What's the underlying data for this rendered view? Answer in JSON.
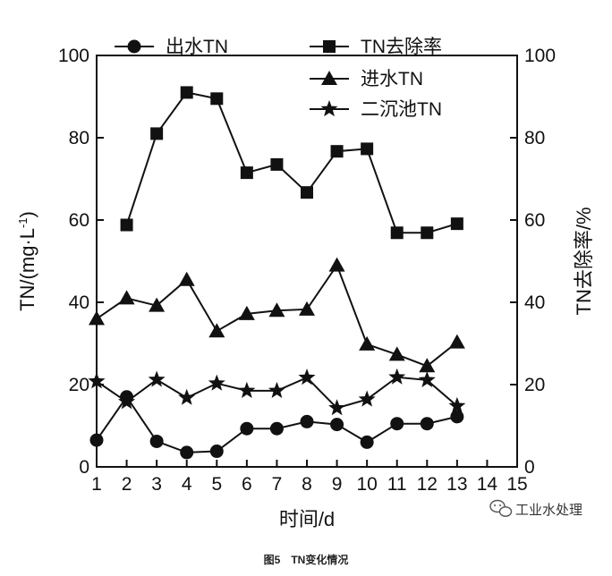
{
  "chart_data": {
    "type": "line",
    "x": [
      1,
      2,
      3,
      4,
      5,
      6,
      7,
      8,
      9,
      10,
      11,
      12,
      13
    ],
    "xlim": [
      1,
      15
    ],
    "xticks": [
      "1",
      "2",
      "3",
      "4",
      "5",
      "6",
      "7",
      "8",
      "9",
      "10",
      "11",
      "12",
      "13",
      "14",
      "15"
    ],
    "xlabel": "时间/d",
    "ylabel": "TN/(mg·L",
    "ylabel_sup": "-1",
    "ylabel_close": ")",
    "ylim": [
      0,
      100
    ],
    "y2label": "TN去除率/%",
    "y2lim": [
      0,
      100
    ],
    "yticks": [
      "0",
      "20",
      "40",
      "60",
      "80",
      "100"
    ],
    "y2ticks": [
      "0",
      "20",
      "40",
      "60",
      "80",
      "100"
    ],
    "grid": false,
    "legend_position": "top",
    "series": [
      {
        "name": "出水TN",
        "marker": "circle",
        "axis": "left",
        "values": [
          6.5,
          17.0,
          6.2,
          3.5,
          3.8,
          9.3,
          9.3,
          11.0,
          10.3,
          6.0,
          10.5,
          10.5,
          12.2
        ]
      },
      {
        "name": "TN去除率",
        "marker": "square",
        "axis": "right",
        "values": [
          null,
          58.8,
          81.0,
          91.0,
          89.5,
          71.5,
          73.5,
          66.7,
          76.7,
          77.3,
          56.9,
          56.9,
          59.1
        ]
      },
      {
        "name": "进水TN",
        "marker": "triangle",
        "axis": "left",
        "values": [
          36.0,
          41.0,
          39.2,
          45.5,
          33.0,
          37.2,
          38.0,
          38.3,
          49.0,
          29.8,
          27.3,
          24.5,
          30.3
        ]
      },
      {
        "name": "二沉池TN",
        "marker": "star",
        "axis": "left",
        "values": [
          20.8,
          15.8,
          21.2,
          16.8,
          20.3,
          18.5,
          18.5,
          21.7,
          14.3,
          16.4,
          21.8,
          21.1,
          14.8
        ]
      }
    ]
  },
  "watermark": "工业水处理",
  "watermark_icon": "wechat-icon",
  "caption": "图5　TN变化情况"
}
